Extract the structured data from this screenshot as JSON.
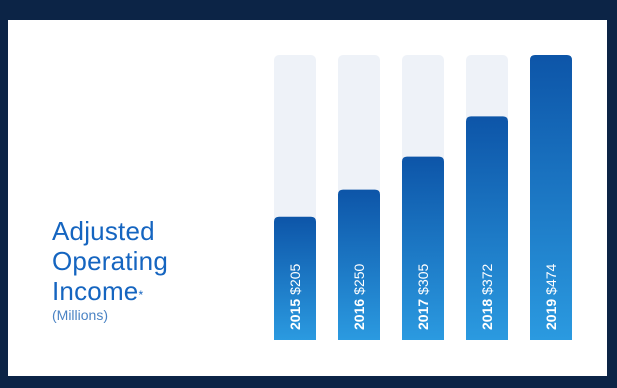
{
  "title_lines": [
    "Adjusted",
    "Operating",
    "Income"
  ],
  "title_footnote_mark": "*",
  "subtitle": "(Millions)",
  "colors": {
    "frame": "#0c2446",
    "track": "#eef2f8",
    "bar_top": "#0d55a8",
    "bar_bottom": "#2b9ae0",
    "title": "#1565c0",
    "label": "#ffffff"
  },
  "chart_data": {
    "type": "bar",
    "categories": [
      "2015",
      "2016",
      "2017",
      "2018",
      "2019"
    ],
    "values": [
      205,
      250,
      305,
      372,
      474
    ],
    "value_labels": [
      "$205",
      "$250",
      "$305",
      "$372",
      "$474"
    ],
    "ylim": [
      0,
      474
    ],
    "grid": false
  }
}
